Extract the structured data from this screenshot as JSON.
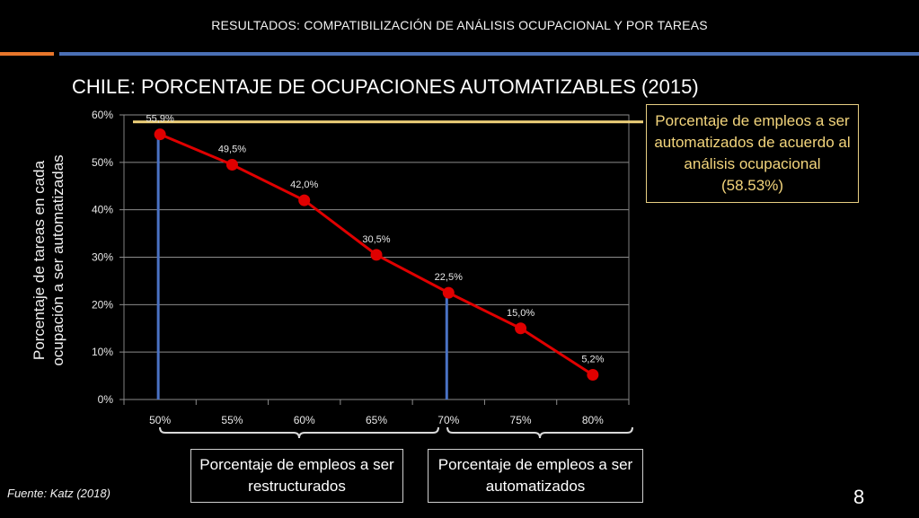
{
  "header": {
    "title": "RESULTADOS: COMPATIBILIZACIÓN DE ANÁLISIS OCUPACIONAL Y POR TAREAS"
  },
  "colors": {
    "accent_orange": "#e8762b",
    "accent_blue": "#4a6fb5",
    "series_red": "#e00000",
    "reference_gold": "#f0d27a",
    "drop_line_blue": "#4a72c4"
  },
  "chart_data": {
    "type": "line",
    "title": "CHILE: PORCENTAJE DE OCUPACIONES AUTOMATIZABLES (2015)",
    "ylabel": "Porcentaje de tareas en cada ocupación a ser automatizadas",
    "xlabel": "",
    "categories": [
      "50%",
      "55%",
      "60%",
      "65%",
      "70%",
      "75%",
      "80%"
    ],
    "values": [
      55.9,
      49.5,
      42.0,
      30.5,
      22.5,
      15.0,
      5.2
    ],
    "data_labels": [
      "55,9%",
      "49,5%",
      "42,0%",
      "30,5%",
      "22,5%",
      "15,0%",
      "5,2%"
    ],
    "yticks": [
      "0%",
      "10%",
      "20%",
      "30%",
      "40%",
      "50%",
      "60%"
    ],
    "ylim": [
      0,
      60
    ],
    "grid": true,
    "reference_line": {
      "value": 58.53
    },
    "drop_lines_at": [
      "50%",
      "70%"
    ]
  },
  "callout": {
    "text": "Porcentaje de empleos a ser automatizados de acuerdo al análisis ocupacional (58.53%)"
  },
  "groups": {
    "left": "Porcentaje de empleos a ser restructurados",
    "right": "Porcentaje de empleos a ser automatizados"
  },
  "footer": {
    "source": "Fuente: Katz (2018)",
    "page_number": "8"
  }
}
